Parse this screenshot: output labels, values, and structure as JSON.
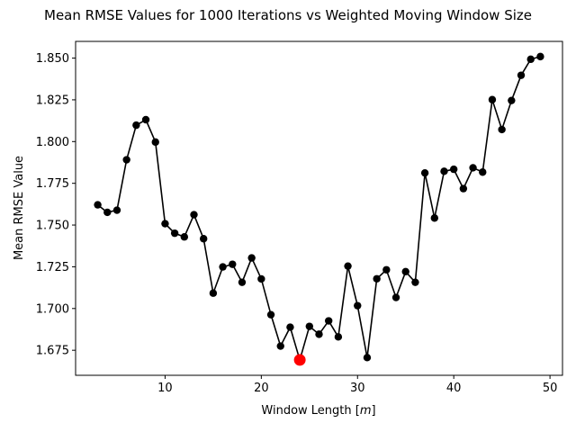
{
  "chart_data": {
    "type": "line",
    "title": "Mean RMSE Values for 1000 Iterations vs Weighted Moving Window Size",
    "xlabel_prefix": "Window Length [",
    "xlabel_var": "m",
    "xlabel_suffix": "]",
    "ylabel": "Mean RMSE Value",
    "xlim": [
      0.7,
      51.3
    ],
    "ylim": [
      1.66,
      1.86
    ],
    "xticks": [
      10,
      20,
      30,
      40,
      50
    ],
    "yticks": [
      1.675,
      1.7,
      1.725,
      1.75,
      1.775,
      1.8,
      1.825,
      1.85
    ],
    "ytick_labels": [
      "1.675",
      "1.700",
      "1.725",
      "1.750",
      "1.775",
      "1.800",
      "1.825",
      "1.850"
    ],
    "grid": false,
    "series": [
      {
        "color": "#000000",
        "marker": "circle",
        "x": [
          3,
          4,
          5,
          6,
          7,
          8,
          9,
          10,
          11,
          12,
          13,
          14,
          15,
          16,
          17,
          18,
          19,
          20,
          21,
          22,
          23,
          24,
          25,
          26,
          27,
          28,
          29,
          30,
          31,
          32,
          33,
          34,
          35,
          36,
          37,
          38,
          39,
          40,
          41,
          42,
          43,
          44,
          45,
          46,
          47,
          48,
          49
        ],
        "y": [
          1.7621,
          1.7576,
          1.7589,
          1.7891,
          1.8098,
          1.8131,
          1.7997,
          1.7508,
          1.7451,
          1.7429,
          1.7562,
          1.7418,
          1.7092,
          1.7249,
          1.7265,
          1.7157,
          1.7303,
          1.7177,
          1.6963,
          1.6775,
          1.6888,
          1.6692,
          1.6893,
          1.6846,
          1.6926,
          1.683,
          1.7254,
          1.7017,
          1.6706,
          1.7178,
          1.7232,
          1.7066,
          1.7221,
          1.7157,
          1.7812,
          1.7542,
          1.7822,
          1.7834,
          1.7718,
          1.7843,
          1.7817,
          1.8251,
          1.8072,
          1.8246,
          1.8397,
          1.8493,
          1.8509
        ]
      }
    ],
    "highlight": {
      "x": 24,
      "y": 1.6692,
      "color": "#ff0000"
    }
  }
}
